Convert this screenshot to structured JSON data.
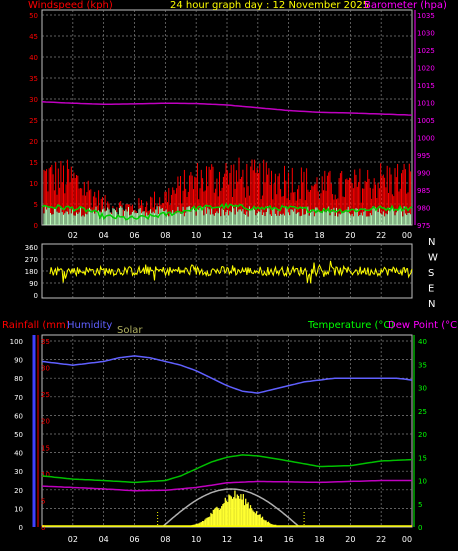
{
  "header": {
    "left": "Windspeed (kph)",
    "center": "24 hour graph day : 12 November 2025",
    "right": "Barometer (hpa)"
  },
  "labels": {
    "rain": "Rainfall (mm)",
    "humidity": "Humidity",
    "solar": "Solar",
    "temperature": "Temperature (°C)",
    "dewpoint": "Dew Point (°C)"
  },
  "colors": {
    "wind": "#ff0000",
    "gust_base": "#c0ffc0",
    "wind_avg": "#00d000",
    "barometer": "#c000c0",
    "direction": "#ffff00",
    "humidity": "#6060ff",
    "temperature": "#00c000",
    "dewpoint": "#c000c0",
    "solar": "#ffff30",
    "solar_max": "#b0b0b0",
    "rain_axis": "#ff0000",
    "temp_axis": "#00ff00",
    "grid": "#808080",
    "label_text": "#ffffff"
  },
  "chart_data": [
    {
      "type": "line",
      "name": "wind_barometer",
      "xticks": [
        "02",
        "04",
        "06",
        "08",
        "10",
        "12",
        "14",
        "16",
        "18",
        "20",
        "22",
        "00"
      ],
      "y_left": {
        "ticks": [
          0,
          5,
          10,
          15,
          20,
          25,
          30,
          35,
          40,
          45,
          50
        ],
        "range": [
          0,
          50
        ]
      },
      "y_right": {
        "ticks": [
          975,
          980,
          985,
          990,
          995,
          1000,
          1005,
          1010,
          1015,
          1020,
          1025,
          1030,
          1035
        ],
        "range": [
          975,
          1035
        ]
      },
      "barometer": {
        "x": [
          0,
          2,
          4,
          6,
          8,
          10,
          12,
          14,
          16,
          18,
          20,
          22,
          24
        ],
        "values": [
          1010.2,
          1009.8,
          1009.5,
          1009.6,
          1009.8,
          1009.7,
          1009.3,
          1008.5,
          1007.7,
          1007.2,
          1007.0,
          1006.7,
          1006.4
        ]
      },
      "wind_gust_envelope": {
        "x": [
          0,
          2,
          3,
          4,
          6,
          8,
          10,
          12,
          14,
          16,
          18,
          20,
          22,
          24
        ],
        "values": [
          14,
          13,
          10,
          6,
          5,
          8,
          13,
          14,
          13,
          13,
          11,
          11,
          13,
          13
        ]
      },
      "wind_avg": {
        "x": [
          0,
          2,
          3,
          4,
          6,
          8,
          10,
          12,
          14,
          16,
          18,
          20,
          22,
          24
        ],
        "values": [
          4.5,
          4.0,
          3.5,
          2.0,
          1.5,
          2.5,
          4.0,
          4.5,
          4.0,
          4.0,
          3.5,
          3.5,
          4.0,
          4.0
        ]
      }
    },
    {
      "type": "scatter",
      "name": "wind_direction",
      "y_ticks": [
        0,
        90,
        180,
        270,
        360
      ],
      "compass": [
        "N",
        "W",
        "S",
        "E",
        "N"
      ],
      "mean_direction": 180
    },
    {
      "type": "line",
      "name": "rain_humidity_temperature",
      "xticks": [
        "02",
        "04",
        "06",
        "08",
        "10",
        "12",
        "14",
        "16",
        "18",
        "20",
        "22",
        "00"
      ],
      "humidity_axis": {
        "ticks": [
          0,
          10,
          20,
          30,
          40,
          50,
          60,
          70,
          80,
          90,
          100
        ],
        "range": [
          0,
          100
        ]
      },
      "rain_axis": {
        "ticks": [
          0,
          5,
          10,
          15,
          20,
          25,
          30,
          35
        ],
        "range": [
          0,
          35
        ]
      },
      "temp_axis": {
        "ticks": [
          0,
          5,
          10,
          15,
          20,
          25,
          30,
          35,
          40
        ],
        "range": [
          0,
          40
        ]
      },
      "humidity": {
        "x": [
          0,
          1,
          2,
          3,
          4,
          5,
          6,
          7,
          8,
          9,
          10,
          11,
          12,
          13,
          14,
          15,
          16,
          17,
          18,
          19,
          20,
          21,
          22,
          23,
          24
        ],
        "values": [
          89,
          88,
          87,
          88,
          89,
          91,
          92,
          91,
          89,
          87,
          84,
          80,
          76,
          73,
          72,
          74,
          76,
          78,
          79,
          80,
          80,
          80,
          80,
          80,
          79
        ]
      },
      "temperature": {
        "x": [
          0,
          2,
          4,
          6,
          8,
          9,
          10,
          11,
          12,
          13,
          14,
          16,
          18,
          20,
          22,
          24
        ],
        "values": [
          11.0,
          10.3,
          10.0,
          9.6,
          10.0,
          11.0,
          12.5,
          14.0,
          15.0,
          15.5,
          15.3,
          14.2,
          13.0,
          13.2,
          14.2,
          14.5
        ]
      },
      "dewpoint": {
        "x": [
          0,
          2,
          4,
          6,
          8,
          10,
          12,
          14,
          16,
          18,
          20,
          22,
          24
        ],
        "values": [
          8.8,
          8.5,
          8.2,
          7.8,
          7.9,
          8.5,
          9.5,
          9.8,
          9.7,
          9.6,
          9.8,
          10.0,
          10.0
        ]
      },
      "solar_period": {
        "start": 7.5,
        "end": 17.0,
        "peak": 12.5
      }
    }
  ]
}
